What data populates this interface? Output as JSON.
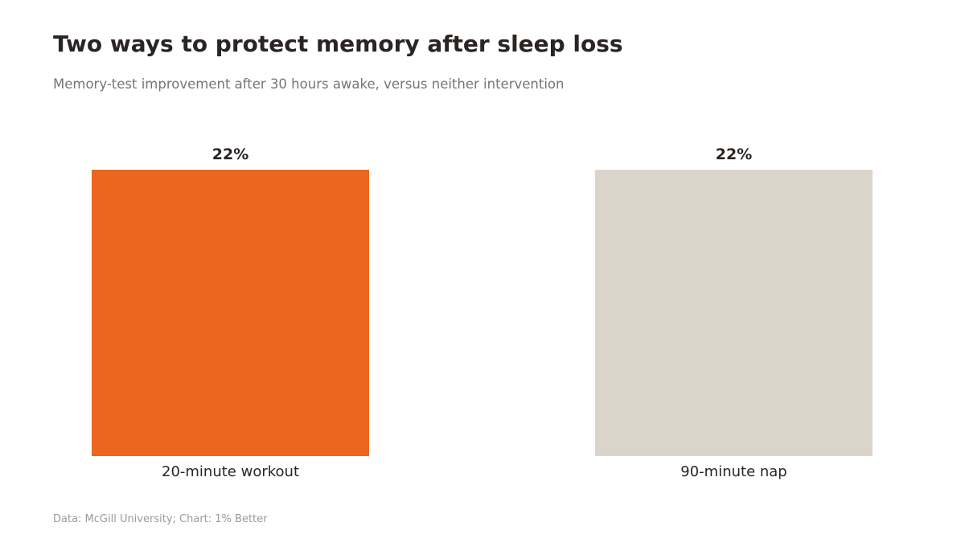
{
  "chart_data": {
    "type": "bar",
    "title": "Two ways to protect memory after sleep loss",
    "subtitle": "Memory-test improvement after 30 hours awake, versus neither intervention",
    "categories": [
      "20-minute workout",
      "90-minute nap"
    ],
    "values": [
      22,
      22
    ],
    "value_labels": [
      "22%",
      "22%"
    ],
    "bar_colors": [
      "#ec661f",
      "#dad4cb"
    ],
    "ylim": [
      0,
      22
    ],
    "grid": false,
    "xlabel": "",
    "ylabel": ""
  },
  "source": "Data: McGill University; Chart: 1% Better",
  "colors": {
    "accent": "#ec661f",
    "muted_bar": "#dad4cb",
    "text": "#2a2522",
    "subtitle": "#74757b",
    "source": "#9a9a9f"
  }
}
